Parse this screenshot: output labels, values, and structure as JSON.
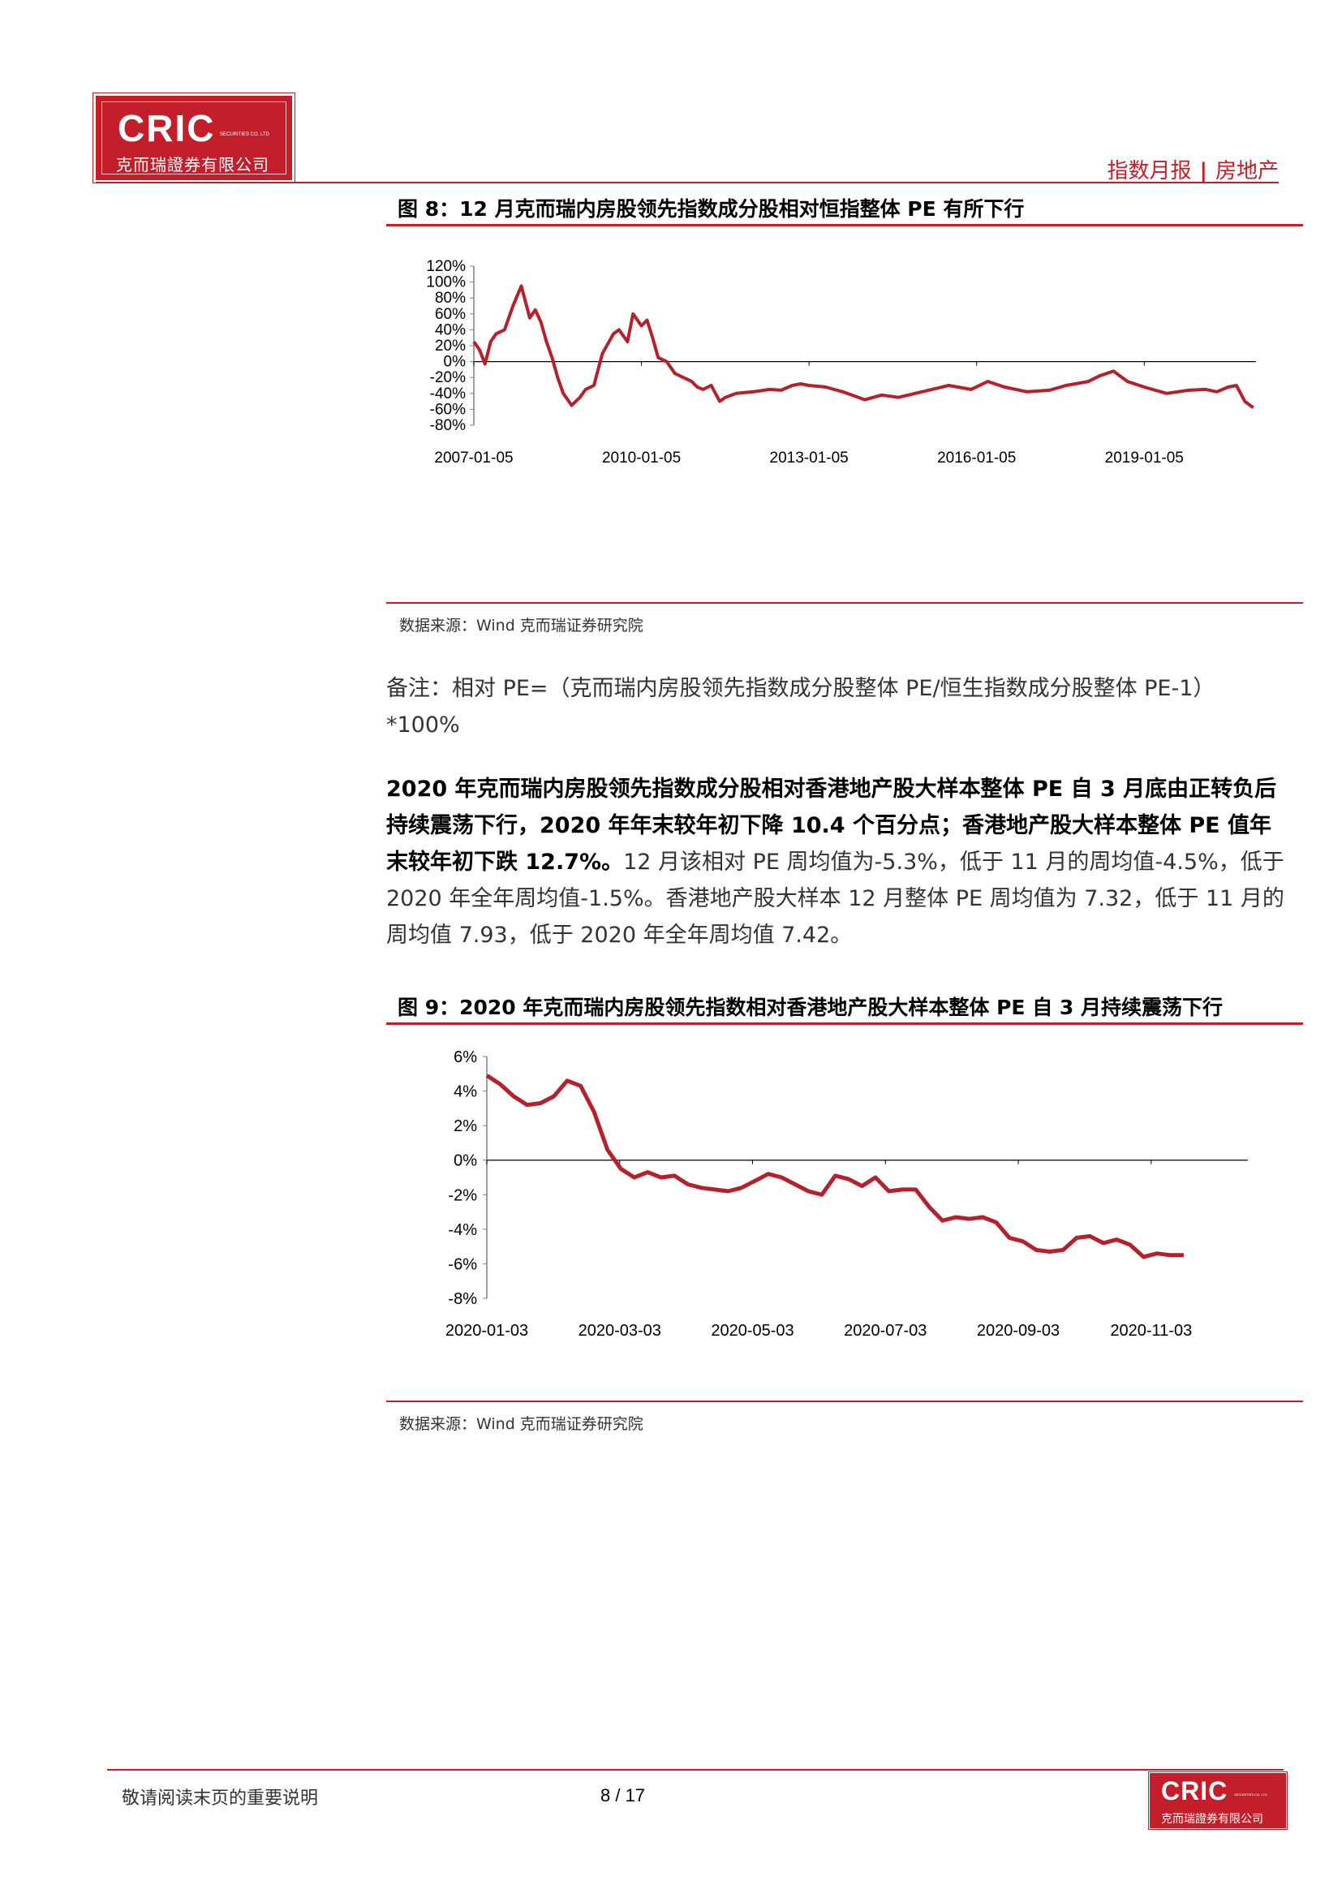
{
  "header": {
    "logo_mark": "CRIC",
    "logo_sub": "SECURITIES CO. LTD",
    "logo_name": "克而瑞證券有限公司",
    "report_type": "指数月报",
    "separator": "|",
    "sector": "房地产"
  },
  "figure8": {
    "title": "图 8：12 月克而瑞内房股领先指数成分股相对恒指整体 PE 有所下行",
    "source": "数据来源：Wind  克而瑞证券研究院",
    "chart_data": {
      "type": "line",
      "title": "",
      "xlabel": "",
      "ylabel": "",
      "x_tick_labels": [
        "2007-01-05",
        "2010-01-05",
        "2013-01-05",
        "2016-01-05",
        "2019-01-05"
      ],
      "y_tick_labels": [
        "120%",
        "100%",
        "80%",
        "60%",
        "40%",
        "20%",
        "0%",
        "-20%",
        "-40%",
        "-60%",
        "-80%"
      ],
      "ylim": [
        -80,
        120
      ],
      "xlim": [
        2007.0,
        2021.0
      ],
      "grid": false,
      "color": "#b5202b",
      "series": [
        {
          "x": [
            2007.0,
            2007.1,
            2007.2,
            2007.3,
            2007.4,
            2007.55,
            2007.7,
            2007.85,
            2008.0,
            2008.1,
            2008.2,
            2008.3,
            2008.4,
            2008.5,
            2008.6,
            2008.75,
            2008.9,
            2009.0,
            2009.15,
            2009.3,
            2009.5,
            2009.6,
            2009.75,
            2009.85,
            2010.0,
            2010.1,
            2010.2,
            2010.3,
            2010.45,
            2010.6,
            2010.75,
            2010.9,
            2011.0,
            2011.1,
            2011.25,
            2011.4,
            2011.5,
            2011.7,
            2012.0,
            2012.3,
            2012.5,
            2012.7,
            2012.85,
            2013.0,
            2013.3,
            2013.6,
            2014.0,
            2014.3,
            2014.6,
            2014.9,
            2015.2,
            2015.5,
            2015.9,
            2016.2,
            2016.5,
            2016.9,
            2017.3,
            2017.6,
            2018.0,
            2018.2,
            2018.45,
            2018.7,
            2019.0,
            2019.4,
            2019.8,
            2020.1,
            2020.3,
            2020.5,
            2020.65,
            2020.8,
            2020.95
          ],
          "values": [
            25,
            15,
            -3,
            25,
            35,
            40,
            70,
            95,
            55,
            65,
            50,
            25,
            5,
            -20,
            -40,
            -55,
            -45,
            -35,
            -30,
            10,
            35,
            40,
            25,
            60,
            45,
            52,
            30,
            5,
            0,
            -15,
            -20,
            -25,
            -32,
            -35,
            -30,
            -50,
            -45,
            -40,
            -38,
            -35,
            -36,
            -30,
            -28,
            -30,
            -32,
            -38,
            -48,
            -42,
            -45,
            -40,
            -35,
            -30,
            -35,
            -25,
            -32,
            -38,
            -36,
            -30,
            -25,
            -18,
            -12,
            -25,
            -32,
            -40,
            -36,
            -35,
            -38,
            -32,
            -30,
            -50,
            -58
          ]
        }
      ]
    }
  },
  "note": {
    "text": "备注：相对 PE=（克而瑞内房股领先指数成分股整体 PE/恒生指数成分股整体 PE-1）*100%"
  },
  "paragraph": {
    "bold_1": "2020 年克而瑞内房股领先指数成分股相对香港地产股大样本整体 PE 自 3 月底由正转负后持续震荡下行，2020 年年末较年初下降 10.4 个百分点；香港地产股大样本整体 PE 值年末较年初下跌 12.7%。",
    "normal_1": "12 月该相对 PE 周均值为-5.3%，低于 11 月的周均值-4.5%，低于 2020 年全年周均值-1.5%。香港地产股大样本 12 月整体 PE 周均值为 7.32，低于 11 月的周均值 7.93，低于 2020 年全年周均值 7.42。"
  },
  "figure9": {
    "title": "图 9：2020 年克而瑞内房股领先指数相对香港地产股大样本整体 PE 自 3 月持续震荡下行",
    "source": "数据来源：Wind  克而瑞证券研究院",
    "chart_data": {
      "type": "line",
      "title": "",
      "xlabel": "",
      "ylabel": "",
      "x_tick_labels": [
        "2020-01-03",
        "2020-03-03",
        "2020-05-03",
        "2020-07-03",
        "2020-09-03",
        "2020-11-03"
      ],
      "y_tick_labels": [
        "6%",
        "4%",
        "2%",
        "0%",
        "-2%",
        "-4%",
        "-6%",
        "-8%"
      ],
      "ylim": [
        -8,
        6
      ],
      "grid": false,
      "color": "#b5202b",
      "series": [
        {
          "x_weeks": [
            0,
            1,
            2,
            3,
            4,
            5,
            6,
            7,
            8,
            9,
            10,
            11,
            12,
            13,
            14,
            15,
            16,
            17,
            18,
            19,
            20,
            21,
            22,
            23,
            24,
            25,
            26,
            27,
            28,
            29,
            30,
            31,
            32,
            33,
            34,
            35,
            36,
            37,
            38,
            39,
            40,
            41,
            42,
            43,
            44,
            45,
            46,
            47,
            48,
            49,
            50,
            51,
            52
          ],
          "values": [
            4.9,
            4.4,
            3.7,
            3.2,
            3.3,
            3.7,
            4.6,
            4.3,
            2.8,
            0.6,
            -0.5,
            -1.0,
            -0.7,
            -1.0,
            -0.9,
            -1.4,
            -1.6,
            -1.7,
            -1.8,
            -1.6,
            -1.2,
            -0.8,
            -1.0,
            -1.4,
            -1.8,
            -2.0,
            -0.9,
            -1.1,
            -1.5,
            -1.0,
            -1.8,
            -1.7,
            -1.7,
            -2.7,
            -3.5,
            -3.3,
            -3.4,
            -3.3,
            -3.6,
            -4.5,
            -4.7,
            -5.2,
            -5.3,
            -5.2,
            -4.5,
            -4.4,
            -4.8,
            -4.6,
            -4.9,
            -5.6,
            -5.4,
            -5.5,
            -5.5
          ]
        }
      ]
    }
  },
  "footer": {
    "left_text": "敬请阅读末页的重要说明",
    "page": "8 / 17",
    "logo_mark": "CRIC",
    "logo_sub": "SECURITIES CO. LTD",
    "logo_name": "克而瑞證券有限公司"
  }
}
